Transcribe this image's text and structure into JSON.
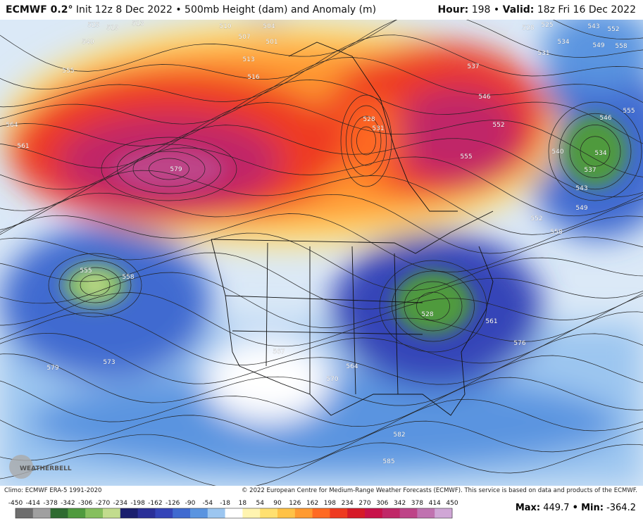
{
  "header": {
    "model": "ECMWF 0.2°",
    "description": "Init 12z 8 Dec 2022 • 500mb Height (dam) and Anomaly (m)",
    "hour_label": "Hour:",
    "hour": "198",
    "separator": "•",
    "valid_label": "Valid:",
    "valid": "18z Fri 16 Dec 2022"
  },
  "map": {
    "logo": "WEATHERBELL",
    "contour_labels": [
      "555",
      "564",
      "561",
      "579",
      "540",
      "525",
      "519",
      "513",
      "510",
      "507",
      "504",
      "501",
      "513",
      "516",
      "537",
      "546",
      "552",
      "555",
      "528",
      "531",
      "528",
      "525",
      "531",
      "534",
      "543",
      "552",
      "549",
      "558",
      "555",
      "546",
      "534",
      "540",
      "537",
      "543",
      "549",
      "552",
      "558",
      "555",
      "558",
      "573",
      "579",
      "567",
      "564",
      "570",
      "561",
      "576",
      "582",
      "585",
      "528"
    ]
  },
  "footer": {
    "climo": "Climo: ECMWF ERA-5 1991-2020",
    "copyright": "© 2022 European Centre for Medium-Range Weather Forecasts (ECMWF). This service is based on data and products of the ECMWF.",
    "max_label": "Max:",
    "max": 449.7,
    "separator": "•",
    "min_label": "Min:",
    "min": -364.2
  },
  "colorbar": {
    "ticks": [
      -450,
      -414,
      -378,
      -342,
      -306,
      -270,
      -234,
      -198,
      -162,
      -126,
      -90,
      -54,
      -18,
      18,
      54,
      90,
      126,
      162,
      198,
      234,
      270,
      306,
      342,
      378,
      414,
      450
    ],
    "colors": [
      "#6e6e6e",
      "#a0a0a0",
      "#2e6b30",
      "#4f9a3e",
      "#86bf5e",
      "#c2dc8e",
      "#1a1f6e",
      "#2a2f98",
      "#3444b8",
      "#3f6ad0",
      "#5a94e0",
      "#9cc6f0",
      "#ffffff",
      "#fff4b0",
      "#ffe070",
      "#ffc246",
      "#ff9a30",
      "#ff6a22",
      "#ee3a20",
      "#d61a28",
      "#c8124a",
      "#c02868",
      "#be4488",
      "#c072b0",
      "#d0a6d6"
    ]
  }
}
